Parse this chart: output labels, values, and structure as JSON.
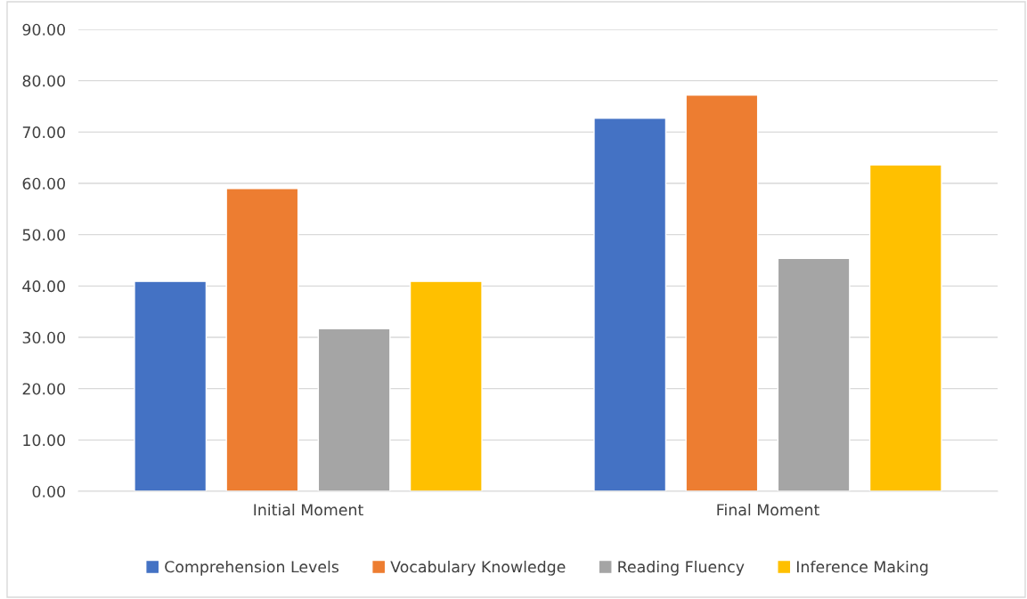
{
  "chart_data": {
    "type": "bar",
    "categories": [
      "Initial Moment",
      "Final Moment"
    ],
    "series": [
      {
        "name": "Comprehension Levels",
        "color": "#4472c4",
        "values": [
          40.9,
          72.7
        ]
      },
      {
        "name": "Vocabulary Knowledge",
        "color": "#ed7d31",
        "values": [
          59.0,
          77.2
        ]
      },
      {
        "name": "Reading Fluency",
        "color": "#a5a5a5",
        "values": [
          31.7,
          45.4
        ]
      },
      {
        "name": "Inference Making",
        "color": "#ffc000",
        "values": [
          40.9,
          63.6
        ]
      }
    ],
    "ylim": [
      0,
      90
    ],
    "yticks": [
      {
        "value": 0,
        "label": "0.00"
      },
      {
        "value": 10,
        "label": "10.00"
      },
      {
        "value": 20,
        "label": "20.00"
      },
      {
        "value": 30,
        "label": "30.00"
      },
      {
        "value": 40,
        "label": "40.00"
      },
      {
        "value": 50,
        "label": "50.00"
      },
      {
        "value": 60,
        "label": "60.00"
      },
      {
        "value": 70,
        "label": "70.00"
      },
      {
        "value": 80,
        "label": "80.00"
      },
      {
        "value": 90,
        "label": "90.00"
      }
    ],
    "grid": "y",
    "legend": "bottom"
  }
}
